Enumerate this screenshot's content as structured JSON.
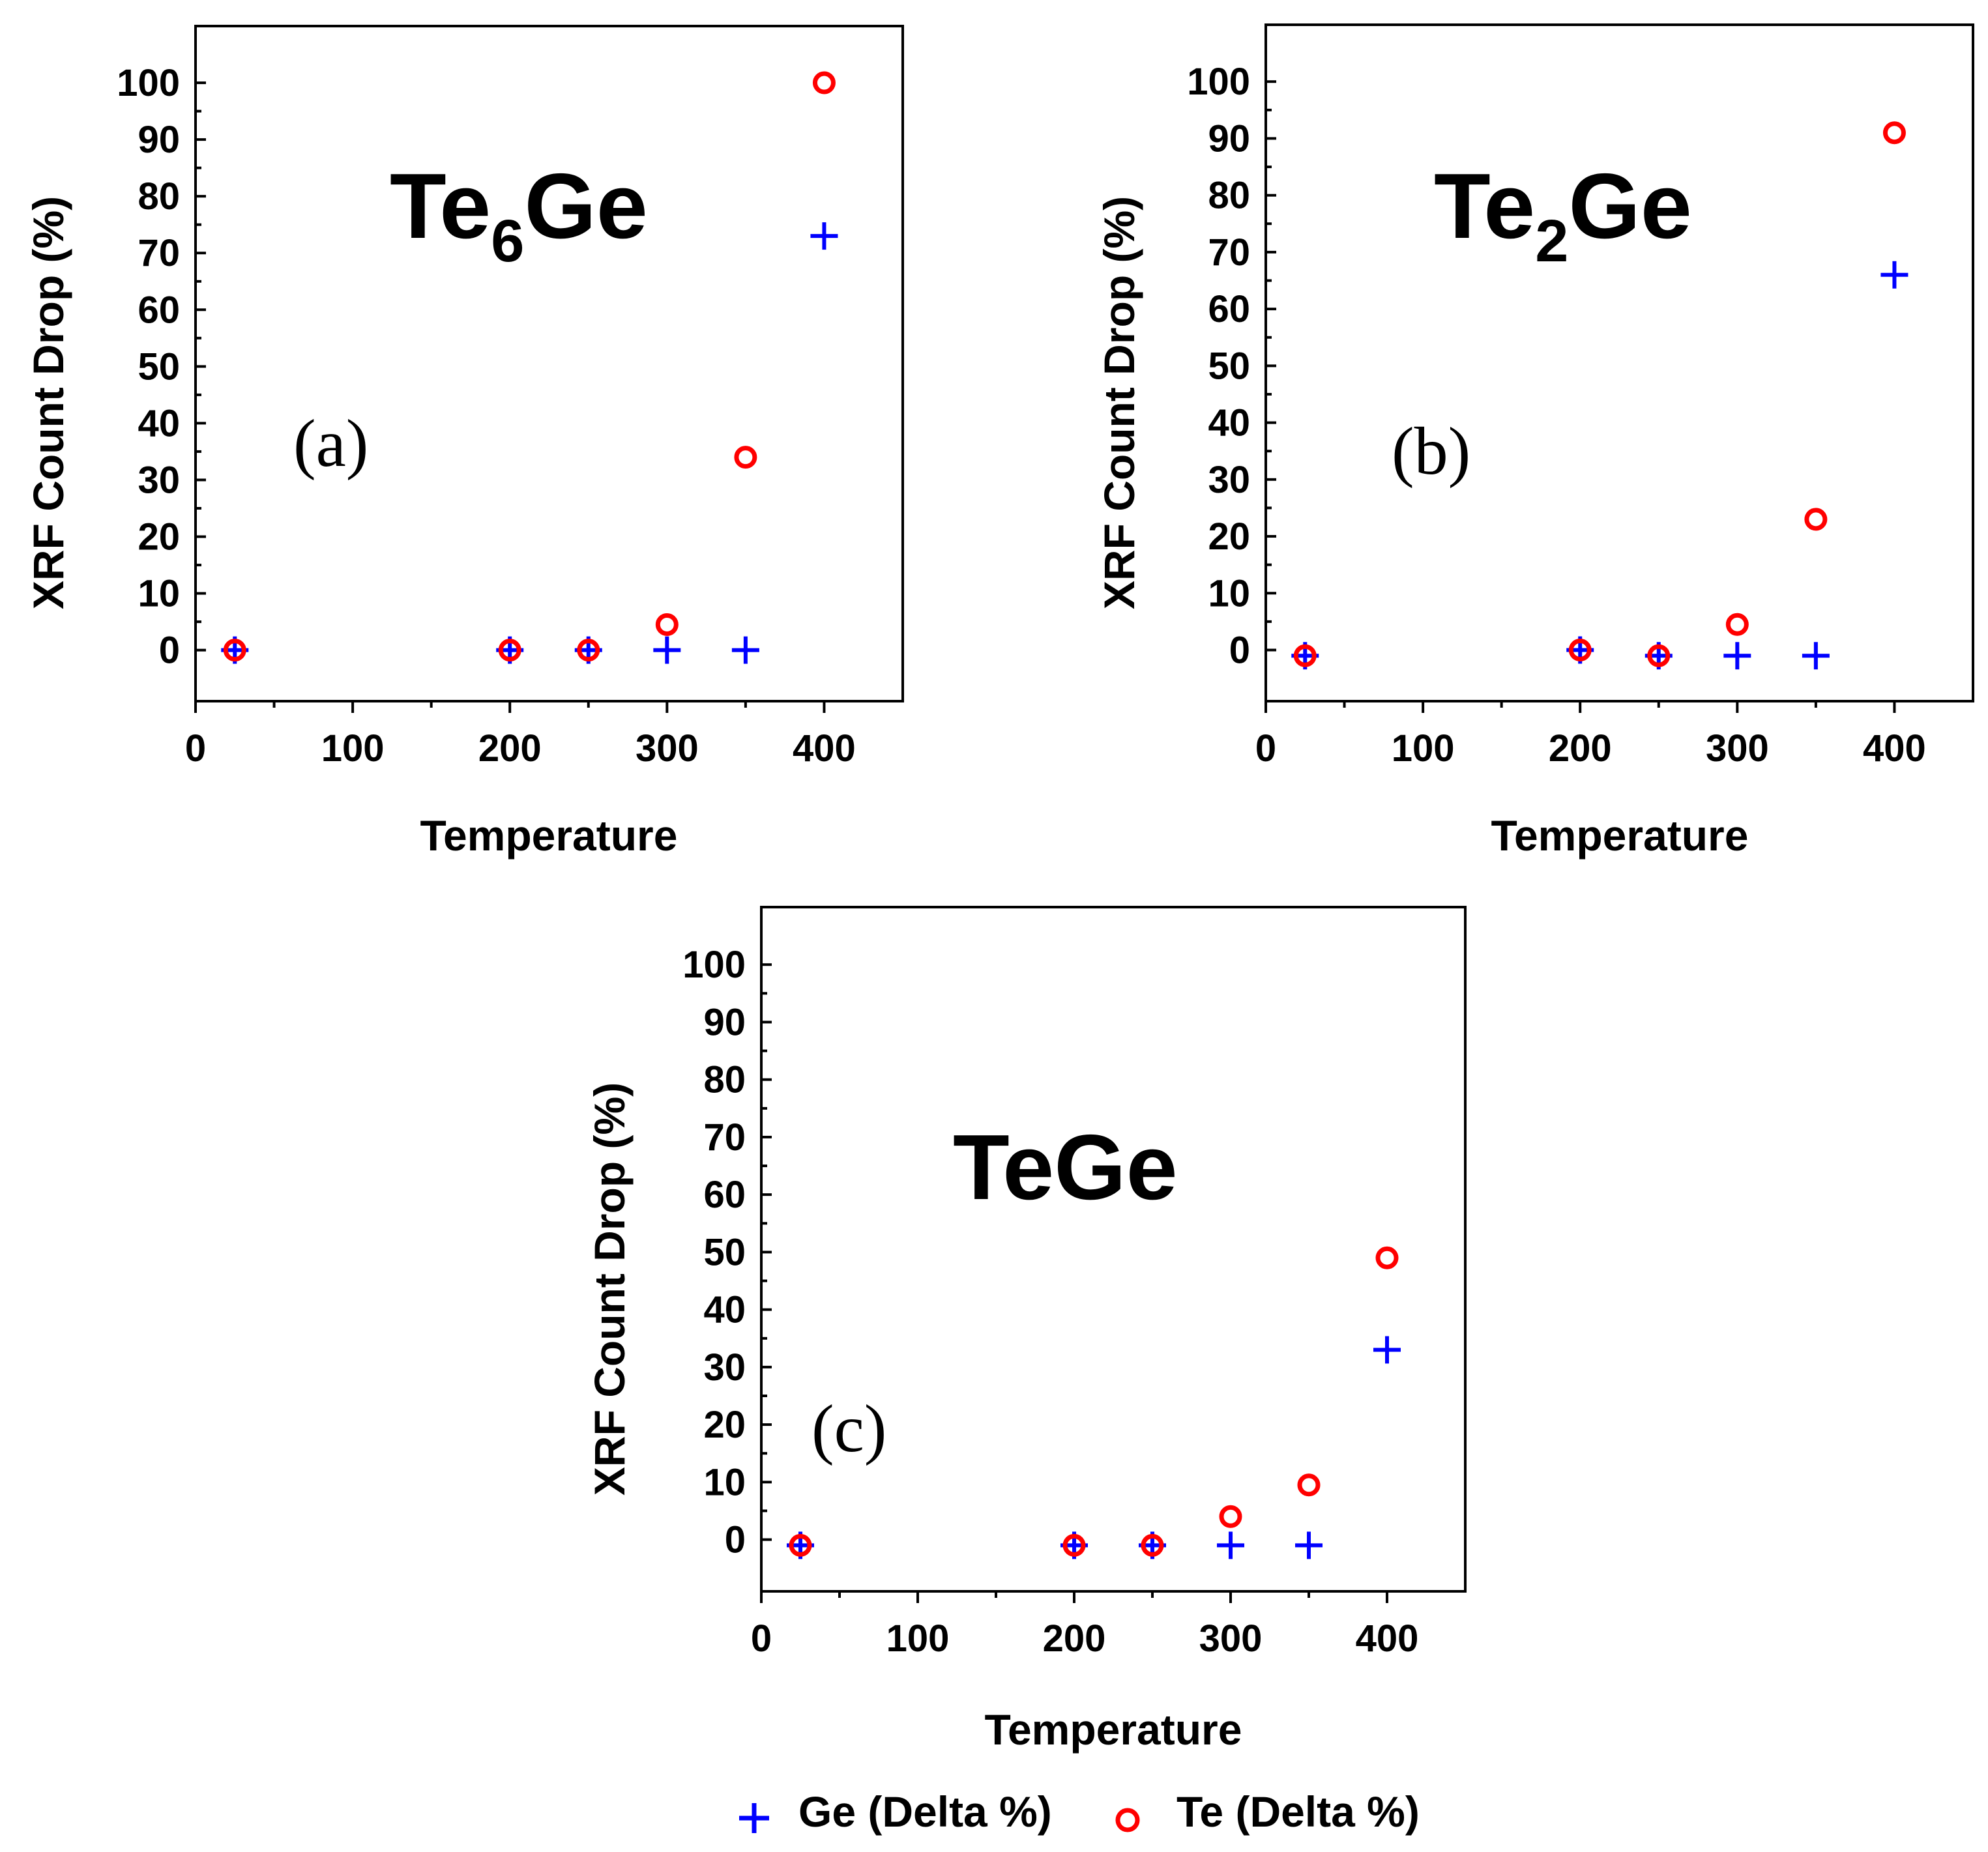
{
  "legend": {
    "items": [
      {
        "label": "Ge (Delta %)",
        "marker": "plus",
        "color": "#0000ff"
      },
      {
        "label": "Te (Delta %)",
        "marker": "circle",
        "color": "#ff0000"
      }
    ]
  },
  "chart_data": [
    {
      "type": "scatter",
      "panel_label": "(a)",
      "compound": {
        "base": "Te",
        "subscript": "6",
        "rest": "Ge"
      },
      "xlabel": "Temperature",
      "ylabel": "XRF Count Drop (%)",
      "xlim": [
        0,
        450
      ],
      "ylim": [
        -9,
        110
      ],
      "xticks": [
        0,
        100,
        200,
        300,
        400
      ],
      "yticks": [
        0,
        10,
        20,
        30,
        40,
        50,
        60,
        70,
        80,
        90,
        100
      ],
      "x": [
        25,
        200,
        250,
        300,
        350,
        400
      ],
      "series": [
        {
          "name": "Ge (Delta %)",
          "marker": "plus",
          "color": "#0000ff",
          "values": [
            0,
            0,
            0,
            0,
            0,
            73
          ]
        },
        {
          "name": "Te (Delta %)",
          "marker": "circle",
          "color": "#ff0000",
          "values": [
            0,
            0,
            0,
            4.5,
            34,
            100
          ]
        }
      ]
    },
    {
      "type": "scatter",
      "panel_label": "(b)",
      "compound": {
        "base": "Te",
        "subscript": "2",
        "rest": "Ge"
      },
      "xlabel": "Temperature",
      "ylabel": "XRF Count Drop (%)",
      "xlim": [
        0,
        450
      ],
      "ylim": [
        -9,
        110
      ],
      "xticks": [
        0,
        100,
        200,
        300,
        400
      ],
      "yticks": [
        0,
        10,
        20,
        30,
        40,
        50,
        60,
        70,
        80,
        90,
        100
      ],
      "x": [
        25,
        200,
        250,
        300,
        350,
        400
      ],
      "series": [
        {
          "name": "Ge (Delta %)",
          "marker": "plus",
          "color": "#0000ff",
          "values": [
            -1,
            0,
            -1,
            -1,
            -1,
            66
          ]
        },
        {
          "name": "Te (Delta %)",
          "marker": "circle",
          "color": "#ff0000",
          "values": [
            -1,
            0,
            -1,
            4.5,
            23,
            91
          ]
        }
      ]
    },
    {
      "type": "scatter",
      "panel_label": "(c)",
      "compound": {
        "base": "TeGe",
        "subscript": "",
        "rest": ""
      },
      "xlabel": "Temperature",
      "ylabel": "XRF Count Drop (%)",
      "xlim": [
        0,
        450
      ],
      "ylim": [
        -9,
        110
      ],
      "xticks": [
        0,
        100,
        200,
        300,
        400
      ],
      "yticks": [
        0,
        10,
        20,
        30,
        40,
        50,
        60,
        70,
        80,
        90,
        100
      ],
      "x": [
        25,
        200,
        250,
        300,
        350,
        400
      ],
      "series": [
        {
          "name": "Ge (Delta %)",
          "marker": "plus",
          "color": "#0000ff",
          "values": [
            -1,
            -1,
            -1,
            -1,
            -1,
            33
          ]
        },
        {
          "name": "Te (Delta %)",
          "marker": "circle",
          "color": "#ff0000",
          "values": [
            -1,
            -1,
            -1,
            4,
            9.5,
            49
          ]
        }
      ]
    }
  ]
}
